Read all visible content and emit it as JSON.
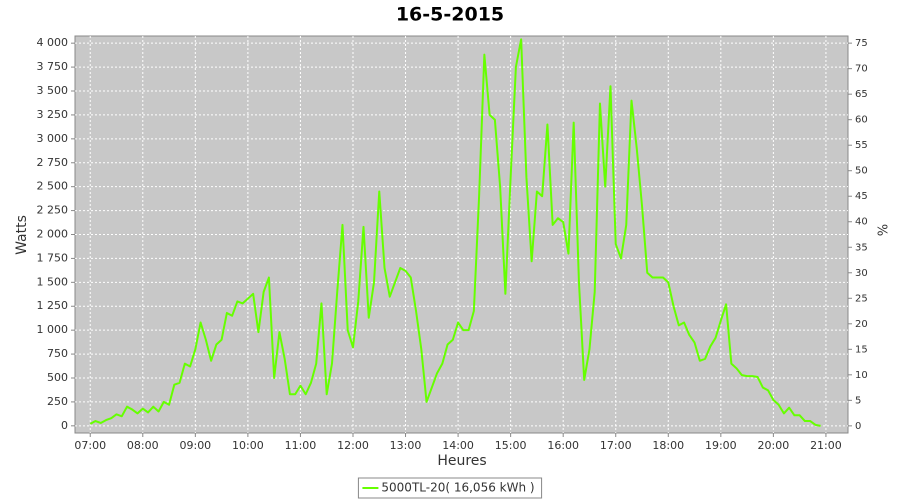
{
  "chart_data": {
    "type": "line",
    "title": "16-5-2015",
    "xlabel": "Heures",
    "ylabel": "Watts",
    "y2label": "%",
    "x": [
      7.0,
      7.1,
      7.2,
      7.3,
      7.4,
      7.5,
      7.6,
      7.7,
      7.8,
      7.9,
      8.0,
      8.1,
      8.2,
      8.3,
      8.4,
      8.5,
      8.6,
      8.7,
      8.8,
      8.9,
      9.0,
      9.1,
      9.2,
      9.3,
      9.4,
      9.5,
      9.6,
      9.7,
      9.8,
      9.9,
      10.0,
      10.1,
      10.2,
      10.3,
      10.4,
      10.5,
      10.6,
      10.7,
      10.8,
      10.9,
      11.0,
      11.1,
      11.2,
      11.3,
      11.4,
      11.5,
      11.6,
      11.7,
      11.8,
      11.9,
      12.0,
      12.1,
      12.2,
      12.3,
      12.4,
      12.5,
      12.6,
      12.7,
      12.8,
      12.9,
      13.0,
      13.1,
      13.2,
      13.3,
      13.4,
      13.5,
      13.6,
      13.7,
      13.8,
      13.9,
      14.0,
      14.1,
      14.2,
      14.3,
      14.4,
      14.5,
      14.6,
      14.7,
      14.8,
      14.9,
      15.0,
      15.1,
      15.2,
      15.3,
      15.4,
      15.5,
      15.6,
      15.7,
      15.8,
      15.9,
      16.0,
      16.1,
      16.2,
      16.3,
      16.4,
      16.5,
      16.6,
      16.7,
      16.8,
      16.9,
      17.0,
      17.1,
      17.2,
      17.3,
      17.4,
      17.5,
      17.6,
      17.7,
      17.8,
      17.9,
      18.0,
      18.1,
      18.2,
      18.3,
      18.4,
      18.5,
      18.6,
      18.7,
      18.8,
      18.9,
      19.0,
      19.1,
      19.2,
      19.3,
      19.4,
      19.5,
      19.6,
      19.7,
      19.8,
      19.9,
      20.0,
      20.1,
      20.2,
      20.3,
      20.4,
      20.5,
      20.6,
      20.7,
      20.8,
      20.9
    ],
    "series": [
      {
        "name": "5000TL-20( 16,056 kWh )",
        "color": "#66ff00",
        "values": [
          20,
          50,
          30,
          60,
          80,
          120,
          100,
          200,
          170,
          130,
          180,
          140,
          200,
          150,
          250,
          220,
          430,
          450,
          650,
          620,
          800,
          1080,
          900,
          680,
          850,
          900,
          1180,
          1150,
          1300,
          1280,
          1330,
          1380,
          980,
          1400,
          1550,
          500,
          980,
          700,
          330,
          330,
          420,
          330,
          450,
          650,
          1280,
          330,
          650,
          1400,
          2100,
          1000,
          820,
          1300,
          2080,
          1130,
          1500,
          2450,
          1650,
          1350,
          1500,
          1650,
          1620,
          1550,
          1200,
          800,
          250,
          400,
          550,
          650,
          850,
          900,
          1080,
          1000,
          1000,
          1200,
          2400,
          3880,
          3250,
          3200,
          2500,
          1380,
          2600,
          3750,
          4040,
          2600,
          1720,
          2450,
          2400,
          3150,
          2100,
          2170,
          2130,
          1800,
          3170,
          1500,
          480,
          800,
          1400,
          3370,
          2500,
          3550,
          1900,
          1750,
          2100,
          3400,
          2900,
          2300,
          1600,
          1550,
          1550,
          1550,
          1500,
          1250,
          1050,
          1080,
          950,
          870,
          680,
          700,
          830,
          920,
          1100,
          1270,
          650,
          600,
          530,
          520,
          520,
          510,
          400,
          370,
          270,
          220,
          130,
          190,
          110,
          110,
          50,
          50,
          10,
          0
        ]
      }
    ],
    "xlim": [
      6.71,
      21.42
    ],
    "xticks": [
      {
        "value": 7,
        "label": "07:00"
      },
      {
        "value": 8,
        "label": "08:00"
      },
      {
        "value": 9,
        "label": "09:00"
      },
      {
        "value": 10,
        "label": "10:00"
      },
      {
        "value": 11,
        "label": "11:00"
      },
      {
        "value": 12,
        "label": "12:00"
      },
      {
        "value": 13,
        "label": "13:00"
      },
      {
        "value": 14,
        "label": "14:00"
      },
      {
        "value": 15,
        "label": "15:00"
      },
      {
        "value": 16,
        "label": "16:00"
      },
      {
        "value": 17,
        "label": "17:00"
      },
      {
        "value": 18,
        "label": "18:00"
      },
      {
        "value": 19,
        "label": "19:00"
      },
      {
        "value": 20,
        "label": "20:00"
      },
      {
        "value": 21,
        "label": "21:00"
      }
    ],
    "ylim": [
      -75,
      4075
    ],
    "yticks": [
      0,
      250,
      500,
      750,
      {
        "value": 1000,
        "label": "1 000"
      },
      {
        "value": 1250,
        "label": "1 250"
      },
      {
        "value": 1500,
        "label": "1 500"
      },
      {
        "value": 1750,
        "label": "1 750"
      },
      {
        "value": 2000,
        "label": "2 000"
      },
      {
        "value": 2250,
        "label": "2 250"
      },
      {
        "value": 2500,
        "label": "2 500"
      },
      {
        "value": 2750,
        "label": "2 750"
      },
      {
        "value": 3000,
        "label": "3 000"
      },
      {
        "value": 3250,
        "label": "3 250"
      },
      {
        "value": 3500,
        "label": "3 500"
      },
      {
        "value": 3750,
        "label": "3 750"
      },
      {
        "value": 4000,
        "label": "4 000"
      }
    ],
    "y2lim": [
      -1.4,
      76.4
    ],
    "y2ticks": [
      0,
      5,
      10,
      15,
      20,
      25,
      30,
      35,
      40,
      45,
      50,
      55,
      60,
      65,
      70,
      75
    ],
    "grid": true,
    "legend": "bottom"
  }
}
